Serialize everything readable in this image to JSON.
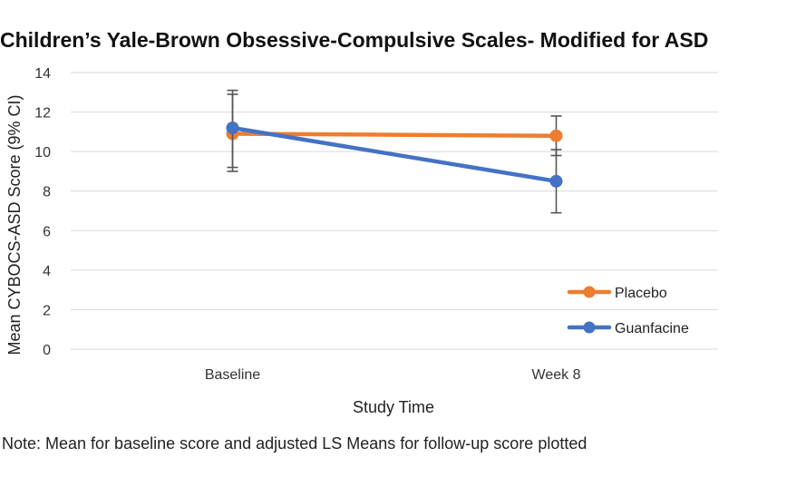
{
  "chart_data": {
    "type": "line",
    "title": "Children’s Yale-Brown Obsessive-Compulsive Scales- Modified for ASD",
    "xlabel": "Study Time",
    "ylabel": "Mean CYBOCS-ASD Score (9% CI)",
    "categories": [
      "Baseline",
      "Week 8"
    ],
    "ylim": [
      0,
      14
    ],
    "yticks": [
      0,
      2,
      4,
      6,
      8,
      10,
      12,
      14
    ],
    "grid": true,
    "legend_position": "bottom-right",
    "series": [
      {
        "name": "Placebo",
        "color": "#ED7D31",
        "values": [
          10.9,
          10.8
        ],
        "ci_low": [
          9.0,
          9.8
        ],
        "ci_high": [
          12.9,
          11.8
        ]
      },
      {
        "name": "Guanfacine",
        "color": "#4472C4",
        "values": [
          11.2,
          8.5
        ],
        "ci_low": [
          9.2,
          6.9
        ],
        "ci_high": [
          13.1,
          10.1
        ]
      }
    ],
    "note": "Note: Mean for baseline score and adjusted LS Means for follow-up score plotted"
  }
}
